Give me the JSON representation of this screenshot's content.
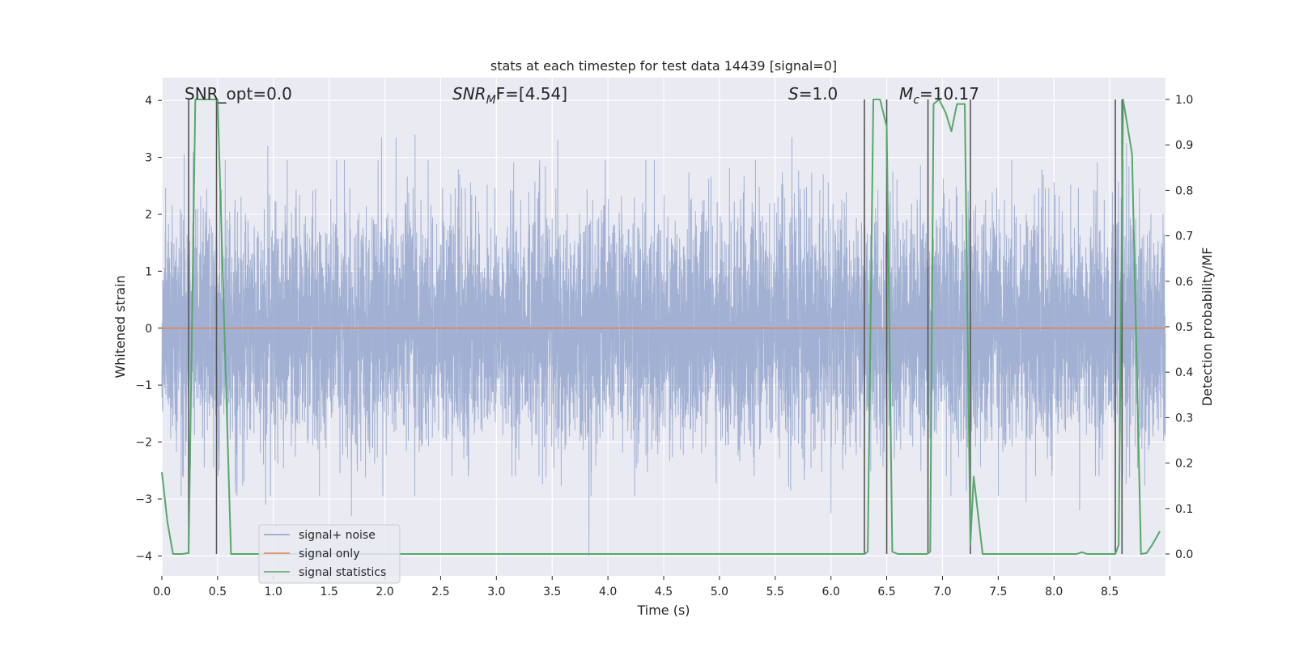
{
  "chart_data": {
    "type": "line",
    "title": "stats at each timestep for test data 14439 [signal=0]",
    "xlabel": "Time (s)",
    "ylabel": "Whitened strain",
    "y2label": "Detection probability/MF",
    "xlim": [
      0.0,
      9.0
    ],
    "ylim": [
      -4.35,
      4.4
    ],
    "y2lim": [
      -0.048,
      1.048
    ],
    "xticks": [
      0.0,
      0.5,
      1.0,
      1.5,
      2.0,
      2.5,
      3.0,
      3.5,
      4.0,
      4.5,
      5.0,
      5.5,
      6.0,
      6.5,
      7.0,
      7.5,
      8.0,
      8.5
    ],
    "xtick_labels": [
      "0.0",
      "0.5",
      "1.0",
      "1.5",
      "2.0",
      "2.5",
      "3.0",
      "3.5",
      "4.0",
      "4.5",
      "5.0",
      "5.5",
      "6.0",
      "6.5",
      "7.0",
      "7.5",
      "8.0",
      "8.5"
    ],
    "yticks": [
      -4,
      -3,
      -2,
      -1,
      0,
      1,
      2,
      3,
      4
    ],
    "ytick_labels": [
      "−4",
      "−3",
      "−2",
      "−1",
      "0",
      "1",
      "2",
      "3",
      "4"
    ],
    "y2ticks": [
      0.0,
      0.1,
      0.2,
      0.3,
      0.4,
      0.5,
      0.6,
      0.7,
      0.8,
      0.9,
      1.0
    ],
    "y2tick_labels": [
      "0.0",
      "0.1",
      "0.2",
      "0.3",
      "0.4",
      "0.5",
      "0.6",
      "0.7",
      "0.8",
      "0.9",
      "1.0"
    ],
    "annotations": {
      "snr_opt": "SNR_opt=0.0",
      "snr_mf_main": "SNR",
      "snr_mf_sub": "M",
      "snr_mf_rest": "F=[4.54]",
      "s_main": "S",
      "s_rest": "=1.0",
      "mc_main": "M",
      "mc_sub": "c",
      "mc_rest": "=10.17"
    },
    "legend": {
      "position": "lower-left",
      "entries": [
        {
          "label": "signal+ noise",
          "color": "#8da0cb"
        },
        {
          "label": "signal only",
          "color": "#dd8452"
        },
        {
          "label": "signal statistics",
          "color": "#55a868"
        }
      ]
    },
    "series": [
      {
        "name": "signal+ noise",
        "axis": "left",
        "color": "#8da0cb",
        "description": "whitened noise, approx gaussian with sigma 1, peaks reaching about +/-3.4",
        "peaks": [
          {
            "x": 0.2,
            "y": 3.05
          },
          {
            "x": 0.28,
            "y": 3.1
          },
          {
            "x": 0.95,
            "y": 3.2
          },
          {
            "x": 1.97,
            "y": 3.35
          },
          {
            "x": 2.1,
            "y": 3.35
          },
          {
            "x": 2.27,
            "y": 3.4
          },
          {
            "x": 3.55,
            "y": 3.3
          },
          {
            "x": 5.65,
            "y": 3.35
          },
          {
            "x": 8.65,
            "y": 3.25
          },
          {
            "x": 0.93,
            "y": -3.1
          },
          {
            "x": 1.7,
            "y": -3.3
          },
          {
            "x": 3.83,
            "y": -4.0
          },
          {
            "x": 6.0,
            "y": -3.25
          },
          {
            "x": 7.75,
            "y": -3.05
          },
          {
            "x": 8.23,
            "y": -3.2
          }
        ]
      },
      {
        "name": "signal only",
        "axis": "left",
        "color": "#dd8452",
        "x": [
          0.0,
          9.0
        ],
        "y": [
          0.0,
          0.0
        ]
      },
      {
        "name": "signal statistics",
        "axis": "right",
        "color": "#55a868",
        "x": [
          0.0,
          0.05,
          0.1,
          0.18,
          0.24,
          0.3,
          0.5,
          0.62,
          0.7,
          6.3,
          6.33,
          6.38,
          6.44,
          6.5,
          6.55,
          6.6,
          6.7,
          6.86,
          6.89,
          6.92,
          6.97,
          7.03,
          7.08,
          7.13,
          7.2,
          7.25,
          7.28,
          7.36,
          7.45,
          8.2,
          8.25,
          8.3,
          8.4,
          8.55,
          8.58,
          8.62,
          8.7,
          8.78,
          8.83,
          8.88,
          8.95
        ],
        "y": [
          0.18,
          0.07,
          0.0,
          0.0,
          0.002,
          1.0,
          1.0,
          0.0,
          0.0,
          0.0,
          0.005,
          1.0,
          1.0,
          0.94,
          0.005,
          0.0,
          0.0,
          0.0,
          0.005,
          0.99,
          1.0,
          0.97,
          0.93,
          0.99,
          0.99,
          0.02,
          0.17,
          0.0,
          0.0,
          0.0,
          0.004,
          0.0,
          0.0,
          0.0,
          0.02,
          1.0,
          0.88,
          0.0,
          0.002,
          0.02,
          0.05
        ]
      }
    ],
    "vertical_markers": [
      0.24,
      0.49,
      6.3,
      6.5,
      6.87,
      7.25,
      8.55,
      8.61
    ]
  }
}
